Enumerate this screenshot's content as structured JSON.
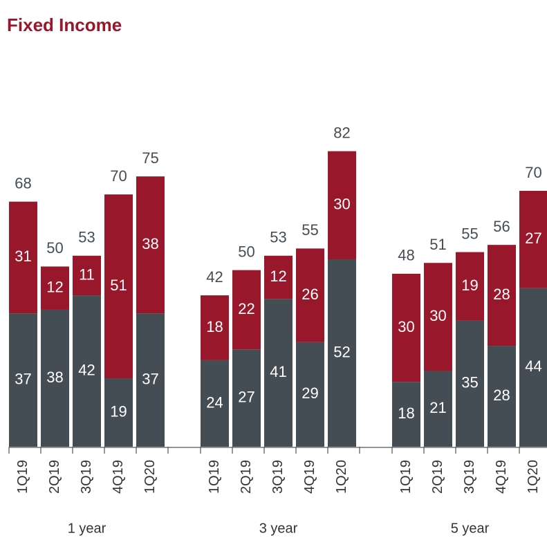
{
  "title": "Fixed Income",
  "chart_data": [
    {
      "type": "bar",
      "stacked": true,
      "xlabel": "1 year",
      "categories": [
        "1Q19",
        "2Q19",
        "3Q19",
        "4Q19",
        "1Q20"
      ],
      "series": [
        {
          "color": "#444d53",
          "values": [
            37,
            38,
            42,
            19,
            37
          ]
        },
        {
          "color": "#99172a",
          "values": [
            31,
            12,
            11,
            51,
            38
          ]
        }
      ],
      "totals": [
        68,
        50,
        53,
        70,
        75
      ],
      "ylim": [
        0,
        85
      ]
    },
    {
      "type": "bar",
      "stacked": true,
      "xlabel": "3 year",
      "categories": [
        "1Q19",
        "2Q19",
        "3Q19",
        "4Q19",
        "1Q20"
      ],
      "series": [
        {
          "color": "#444d53",
          "values": [
            24,
            27,
            41,
            29,
            52
          ]
        },
        {
          "color": "#99172a",
          "values": [
            18,
            22,
            12,
            26,
            30
          ]
        }
      ],
      "totals": [
        42,
        50,
        53,
        55,
        82
      ],
      "ylim": [
        0,
        85
      ]
    },
    {
      "type": "bar",
      "stacked": true,
      "xlabel": "5 year",
      "categories": [
        "1Q19",
        "2Q19",
        "3Q19",
        "4Q19",
        "1Q20"
      ],
      "series": [
        {
          "color": "#444d53",
          "values": [
            18,
            21,
            35,
            28,
            44
          ]
        },
        {
          "color": "#99172a",
          "values": [
            30,
            30,
            19,
            28,
            27
          ]
        }
      ],
      "totals": [
        48,
        51,
        55,
        56,
        70
      ],
      "ylim": [
        0,
        85
      ]
    }
  ]
}
